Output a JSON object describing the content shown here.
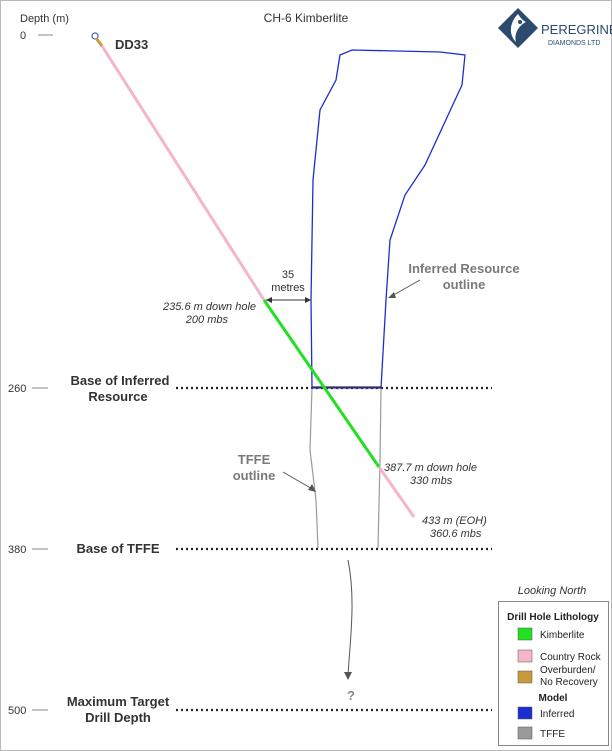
{
  "title": "CH-6 Kimberlite",
  "logo": {
    "line1": "PEREGRINE",
    "line2": "DIAMONDS LTD"
  },
  "depth_axis": {
    "title": "Depth (m)",
    "ticks": [
      "0",
      "260",
      "380",
      "500"
    ]
  },
  "hole": {
    "name": "DD33"
  },
  "levels": {
    "base_inferred_1": "Base of Inferred",
    "base_inferred_2": "Resource",
    "base_tffe": "Base of TFFE",
    "max_target_1": "Maximum Target",
    "max_target_2": "Drill Depth"
  },
  "annotations": {
    "distance_value": "35",
    "distance_unit": "metres",
    "top_kimb_1": "235.6 m down hole",
    "top_kimb_2": "200 mbs",
    "bottom_kimb_1": "387.7 m down hole",
    "bottom_kimb_2": "330 mbs",
    "eoh_1": "433 m (EOH)",
    "eoh_2": "360.6 mbs",
    "inferred_outline_1": "Inferred Resource",
    "inferred_outline_2": "outline",
    "tffe_outline_1": "TFFE",
    "tffe_outline_2": "outline",
    "question": "?"
  },
  "view_label": "Looking North",
  "legend": {
    "heading_lith": "Drill Hole Lithology",
    "kimberlite": "Kimberlite",
    "country_rock": "Country Rock",
    "overburden_1": "Overburden/",
    "overburden_2": "No Recovery",
    "heading_model": "Model",
    "inferred": "Inferred",
    "tffe": "TFFE"
  },
  "colors": {
    "kimberlite": "#22e022",
    "country_rock": "#f4b6c8",
    "overburden": "#c99a3c",
    "inferred": "#1a2fd0",
    "tffe": "#9a9a9a"
  }
}
